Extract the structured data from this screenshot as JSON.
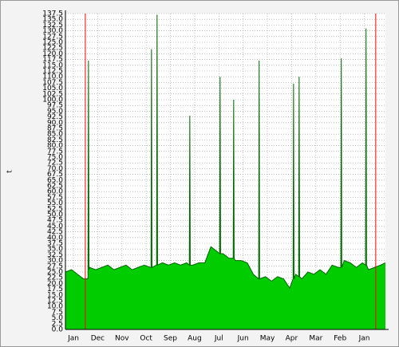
{
  "chart_data": {
    "type": "area",
    "ylabel": "t",
    "ylim": [
      0,
      137.5
    ],
    "yticks": [
      {
        "value": 0,
        "label": "0.0"
      },
      2.5,
      {
        "value": 5,
        "label": "5.0"
      },
      7.5,
      {
        "value": 10,
        "label": "10.0"
      },
      12.5,
      {
        "value": 15,
        "label": "15.0"
      },
      17.5,
      {
        "value": 20,
        "label": "20.0"
      },
      22.5,
      {
        "value": 25,
        "label": "25.0"
      },
      27.5,
      {
        "value": 30,
        "label": "30.0"
      },
      32.5,
      {
        "value": 35,
        "label": "35.0"
      },
      37.5,
      {
        "value": 40,
        "label": "40.0"
      },
      42.5,
      {
        "value": 45,
        "label": "45.0"
      },
      47.5,
      {
        "value": 50,
        "label": "50.0"
      },
      52.5,
      {
        "value": 55,
        "label": "55.0"
      },
      57.5,
      {
        "value": 60,
        "label": "60.0"
      },
      62.5,
      {
        "value": 65,
        "label": "65.0"
      },
      67.5,
      {
        "value": 70,
        "label": "70.0"
      },
      72.5,
      {
        "value": 75,
        "label": "75.0"
      },
      77.5,
      {
        "value": 80,
        "label": "80.0"
      },
      82.5,
      {
        "value": 85,
        "label": "85.0"
      },
      87.5,
      {
        "value": 90,
        "label": "90.0"
      },
      92.5,
      {
        "value": 95,
        "label": "95.0"
      },
      97.5,
      {
        "value": 100,
        "label": "100.0"
      },
      102.5,
      {
        "value": 105,
        "label": "105.0"
      },
      107.5,
      {
        "value": 110,
        "label": "110.0"
      },
      112.5,
      {
        "value": 115,
        "label": "115.0"
      },
      117.5,
      {
        "value": 120,
        "label": "120.0"
      },
      122.5,
      {
        "value": 125,
        "label": "125.0"
      },
      127.5,
      {
        "value": 130,
        "label": "130.0"
      },
      132.5,
      {
        "value": 135,
        "label": "135.0"
      },
      137.5
    ],
    "xlim": [
      0,
      13.2
    ],
    "xticks": [
      {
        "value": 0.33,
        "label": "Jan"
      },
      {
        "value": 1.33,
        "label": "Dec"
      },
      {
        "value": 2.33,
        "label": "Nov"
      },
      {
        "value": 3.33,
        "label": "Oct"
      },
      {
        "value": 4.33,
        "label": "Sep"
      },
      {
        "value": 5.33,
        "label": "Aug"
      },
      {
        "value": 6.33,
        "label": "Jul"
      },
      {
        "value": 7.33,
        "label": "Jun"
      },
      {
        "value": 8.33,
        "label": "May"
      },
      {
        "value": 9.33,
        "label": "Apr"
      },
      {
        "value": 10.33,
        "label": "Mar"
      },
      {
        "value": 11.33,
        "label": "Feb"
      },
      {
        "value": 12.33,
        "label": "Jan"
      }
    ],
    "grid": true,
    "vrules": {
      "color": "#ff0000",
      "values": [
        0.82,
        12.8
      ]
    },
    "x": [
      0,
      0.25,
      0.5,
      0.75,
      0.93,
      0.95,
      0.97,
      1.0,
      1.25,
      1.5,
      1.75,
      2.0,
      2.25,
      2.5,
      2.75,
      3.0,
      3.25,
      3.5,
      3.53,
      3.55,
      3.57,
      3.75,
      3.76,
      3.78,
      3.8,
      4.0,
      4.25,
      4.5,
      4.75,
      5.0,
      5.11,
      5.13,
      5.15,
      5.25,
      5.5,
      5.75,
      6.0,
      6.25,
      6.36,
      6.38,
      6.4,
      6.5,
      6.75,
      6.92,
      6.94,
      6.96,
      7.0,
      7.25,
      7.5,
      7.75,
      7.97,
      7.99,
      8.01,
      8.25,
      8.5,
      8.75,
      9.0,
      9.25,
      9.39,
      9.41,
      9.43,
      9.5,
      9.62,
      9.64,
      9.66,
      9.75,
      10.0,
      10.25,
      10.5,
      10.75,
      11.0,
      11.25,
      11.36,
      11.38,
      11.4,
      11.5,
      11.75,
      12.0,
      12.25,
      12.38,
      12.4,
      12.42,
      12.5,
      12.75,
      13.0,
      13.2
    ],
    "series": [
      {
        "color": "#00cc00",
        "line_color": "#006400",
        "values": [
          25,
          26,
          24,
          22,
          22,
          117,
          26,
          27,
          26,
          27,
          28,
          26,
          27,
          28,
          26,
          27,
          28,
          27,
          27,
          122,
          27,
          28,
          28,
          137,
          28,
          29,
          28,
          29,
          28,
          29,
          28,
          93,
          28,
          28,
          29,
          29,
          36,
          34,
          33,
          110,
          33,
          33,
          31,
          31,
          100,
          31,
          30,
          30,
          29,
          24,
          22,
          117,
          22,
          23,
          21,
          23,
          22,
          18,
          22,
          107,
          22,
          24,
          23,
          110,
          23,
          22,
          25,
          24,
          26,
          24,
          28,
          27,
          27,
          118,
          27,
          30,
          29,
          27,
          29,
          28,
          131,
          28,
          26,
          27,
          28,
          29
        ]
      }
    ]
  }
}
